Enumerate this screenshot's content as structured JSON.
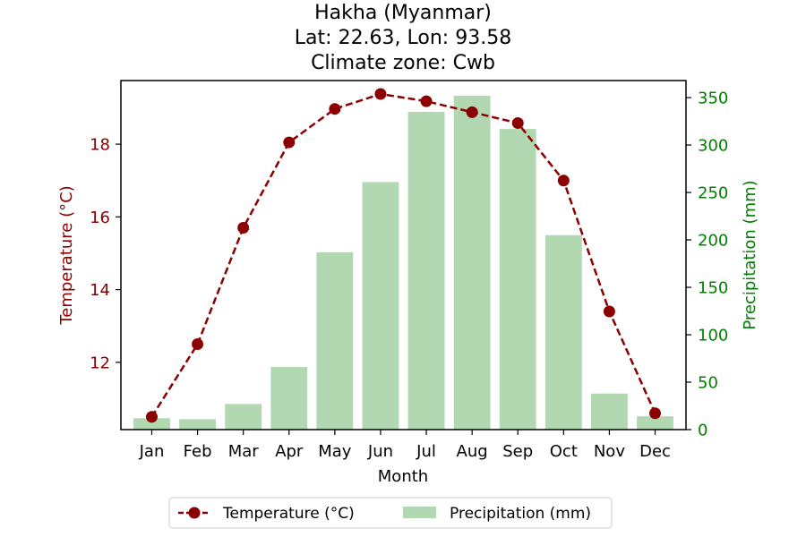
{
  "chart_data": {
    "type": "bar",
    "title_lines": [
      "Hakha (Myanmar)",
      "Lat: 22.63, Lon: 93.58",
      "Climate zone: Cwb"
    ],
    "xlabel": "Month",
    "ylabel_left": "Temperature (°C)",
    "ylabel_right": "Precipitation (mm)",
    "categories": [
      "Jan",
      "Feb",
      "Mar",
      "Apr",
      "May",
      "Jun",
      "Jul",
      "Aug",
      "Sep",
      "Oct",
      "Nov",
      "Dec"
    ],
    "series": [
      {
        "name": "Temperature (°C)",
        "kind": "line",
        "axis": "left",
        "color": "#8b0000",
        "values": [
          10.5,
          12.5,
          15.7,
          18.05,
          18.97,
          19.38,
          19.18,
          18.88,
          18.58,
          17.0,
          13.4,
          10.6
        ]
      },
      {
        "name": "Precipitation (mm)",
        "kind": "bar",
        "axis": "right",
        "color": "#b2d8b2",
        "values": [
          12,
          11,
          27,
          66,
          187,
          261,
          335,
          352,
          317,
          205,
          38,
          14
        ]
      }
    ],
    "ylim_left": [
      10.15,
      19.75
    ],
    "yticks_left": [
      "12",
      "14",
      "16",
      "18"
    ],
    "ylim_right": [
      0,
      368
    ],
    "yticks_right": [
      "0",
      "50",
      "100",
      "150",
      "200",
      "250",
      "300",
      "350"
    ],
    "left_axis_color": "#8b0000",
    "right_axis_color": "#008000",
    "legend_position": "bottom-center"
  }
}
